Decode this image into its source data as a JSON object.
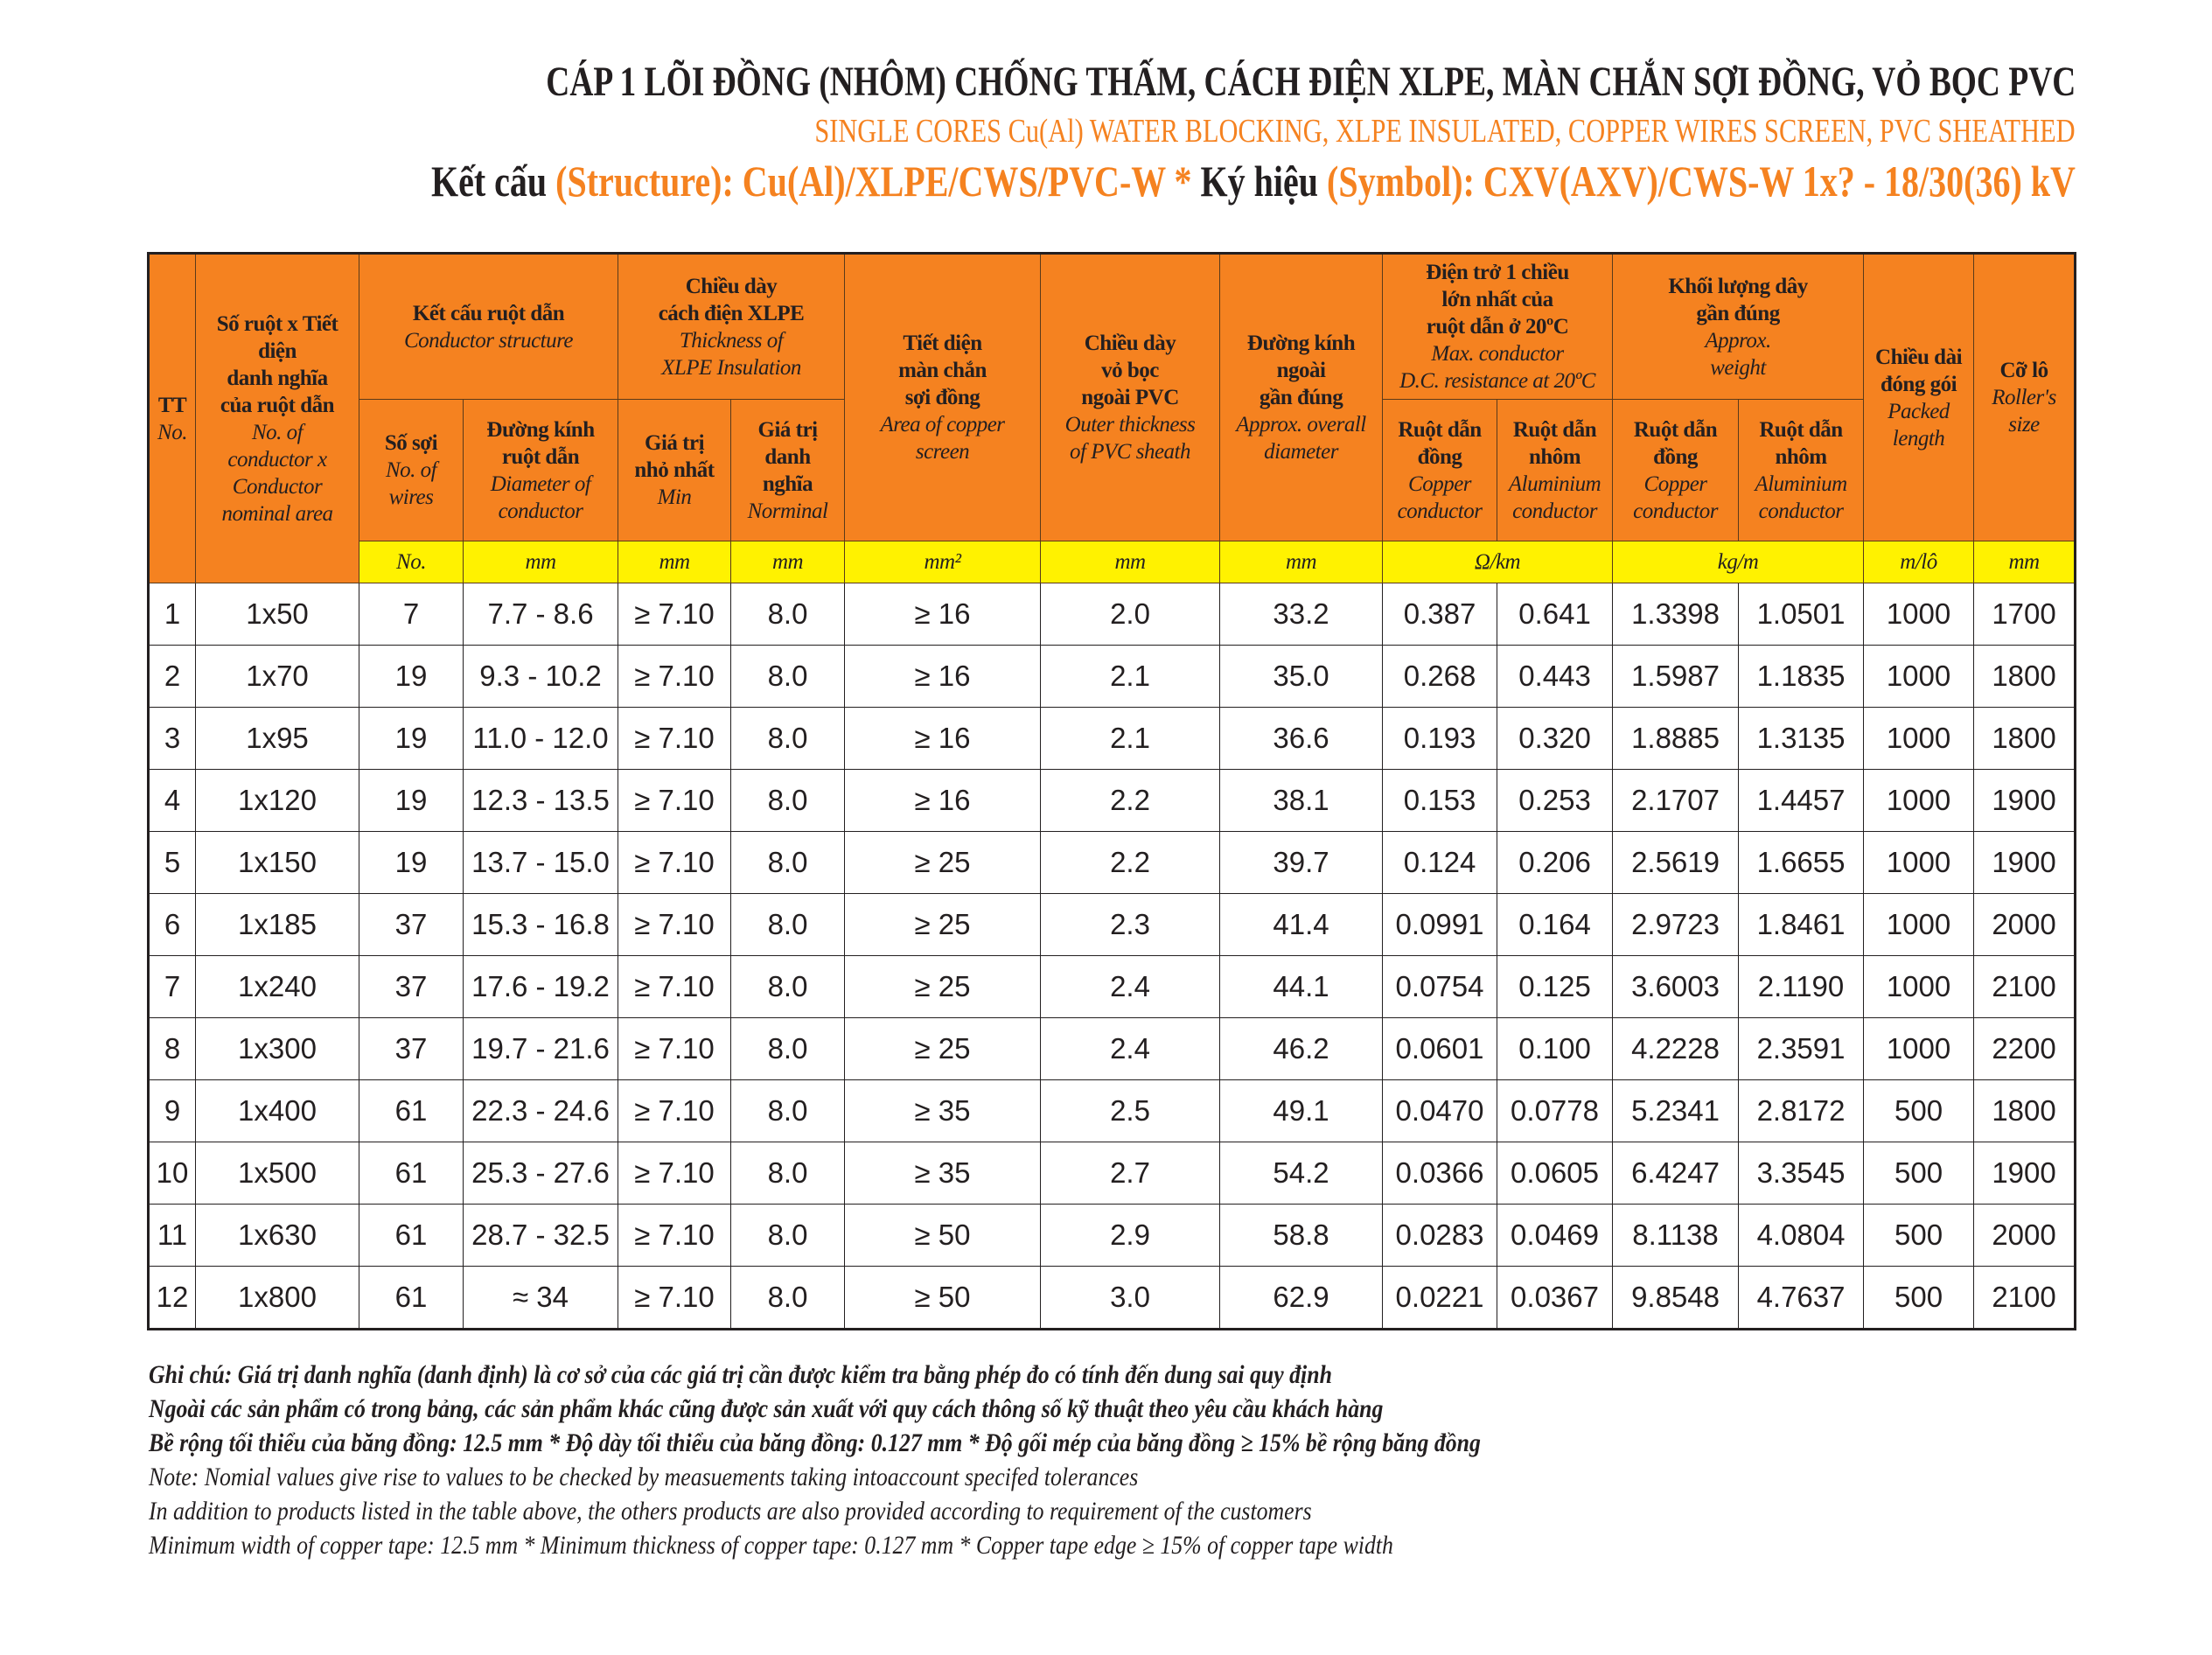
{
  "title": {
    "vi": "CÁP 1 LÕI ĐỒNG (NHÔM) CHỐNG THẤM, CÁCH ĐIỆN XLPE, MÀN CHẮN SỢI ĐỒNG,  VỎ BỌC PVC",
    "en": "SINGLE CORES Cu(Al) WATER BLOCKING, XLPE INSULATED, COPPER WIRES SCREEN,  PVC SHEATHED",
    "structure_label": "Kết cấu ",
    "structure_value": "(Structure): Cu(Al)/XLPE/CWS/PVC-W  * ",
    "symbol_label": "Ký hiệu ",
    "symbol_value": "(Symbol): CXV(AXV)/CWS-W 1x? - 18/30(36) kV"
  },
  "colors": {
    "header": "#f58220",
    "unit_row": "#fff200",
    "accent_text": "#f58220"
  },
  "headers": {
    "tt": {
      "vi": "TT",
      "en": "No."
    },
    "size": {
      "vi": "Số ruột x Tiết\ndiện\ndanh nghĩa\ncủa ruột dẫn",
      "en": "No. of\nconductor x\nConductor\nnominal area"
    },
    "cond": {
      "vi": "Kết cấu ruột dẫn",
      "en": "Conductor structure"
    },
    "wires": {
      "vi": "Số sợi",
      "en": "No. of\nwires"
    },
    "diam": {
      "vi": "Đường kính\nruột dẫn",
      "en": "Diameter of\nconductor"
    },
    "xlpe": {
      "vi": "Chiều dày\ncách điện XLPE",
      "en": "Thickness of\nXLPE Insulation"
    },
    "min": {
      "vi": "Giá trị\nnhỏ nhất",
      "en": "Min"
    },
    "nom": {
      "vi": "Giá trị\ndanh\nnghĩa",
      "en": "Norminal"
    },
    "screen": {
      "vi": "Tiết diện\nmàn chắn\nsợi đồng",
      "en": "Area of copper\nscreen"
    },
    "sheath": {
      "vi": "Chiều dày\nvỏ bọc\nngoài PVC",
      "en": "Outer thickness\nof PVC sheath"
    },
    "od": {
      "vi": "Đường kính\nngoài\ngần đúng",
      "en": "Approx. overall\ndiameter"
    },
    "res": {
      "vi": "Điện trở 1 chiều\nlớn nhất của\nruột dẫn ở 20ºC",
      "en": "Max. conductor\nD.C. resistance at 20ºC"
    },
    "weight": {
      "vi": "Khối lượng dây\ngần đúng",
      "en": "Approx.\nweight"
    },
    "cu": {
      "vi": "Ruột dẫn\nđồng",
      "en": "Copper\nconductor"
    },
    "al": {
      "vi": "Ruột dẫn\nnhôm",
      "en": "Aluminium\nconductor"
    },
    "len": {
      "vi": "Chiều dài\nđóng gói",
      "en": "Packed\nlength"
    },
    "roll": {
      "vi": "Cỡ lô",
      "en": "Roller's\nsize"
    }
  },
  "units": [
    "No.",
    "mm",
    "mm",
    "mm",
    "mm²",
    "mm",
    "mm",
    "Ω/km",
    "kg/m",
    "m/lô",
    "mm"
  ],
  "rows": [
    [
      "1",
      "1x50",
      "7",
      "7.7 - 8.6",
      "≥ 7.10",
      "8.0",
      "≥ 16",
      "2.0",
      "33.2",
      "0.387",
      "0.641",
      "1.3398",
      "1.0501",
      "1000",
      "1700"
    ],
    [
      "2",
      "1x70",
      "19",
      "9.3 - 10.2",
      "≥ 7.10",
      "8.0",
      "≥ 16",
      "2.1",
      "35.0",
      "0.268",
      "0.443",
      "1.5987",
      "1.1835",
      "1000",
      "1800"
    ],
    [
      "3",
      "1x95",
      "19",
      "11.0 - 12.0",
      "≥ 7.10",
      "8.0",
      "≥ 16",
      "2.1",
      "36.6",
      "0.193",
      "0.320",
      "1.8885",
      "1.3135",
      "1000",
      "1800"
    ],
    [
      "4",
      "1x120",
      "19",
      "12.3 - 13.5",
      "≥ 7.10",
      "8.0",
      "≥ 16",
      "2.2",
      "38.1",
      "0.153",
      "0.253",
      "2.1707",
      "1.4457",
      "1000",
      "1900"
    ],
    [
      "5",
      "1x150",
      "19",
      "13.7 - 15.0",
      "≥ 7.10",
      "8.0",
      "≥ 25",
      "2.2",
      "39.7",
      "0.124",
      "0.206",
      "2.5619",
      "1.6655",
      "1000",
      "1900"
    ],
    [
      "6",
      "1x185",
      "37",
      "15.3 - 16.8",
      "≥ 7.10",
      "8.0",
      "≥ 25",
      "2.3",
      "41.4",
      "0.0991",
      "0.164",
      "2.9723",
      "1.8461",
      "1000",
      "2000"
    ],
    [
      "7",
      "1x240",
      "37",
      "17.6 - 19.2",
      "≥ 7.10",
      "8.0",
      "≥ 25",
      "2.4",
      "44.1",
      "0.0754",
      "0.125",
      "3.6003",
      "2.1190",
      "1000",
      "2100"
    ],
    [
      "8",
      "1x300",
      "37",
      "19.7 - 21.6",
      "≥ 7.10",
      "8.0",
      "≥ 25",
      "2.4",
      "46.2",
      "0.0601",
      "0.100",
      "4.2228",
      "2.3591",
      "1000",
      "2200"
    ],
    [
      "9",
      "1x400",
      "61",
      "22.3 - 24.6",
      "≥ 7.10",
      "8.0",
      "≥ 35",
      "2.5",
      "49.1",
      "0.0470",
      "0.0778",
      "5.2341",
      "2.8172",
      "500",
      "1800"
    ],
    [
      "10",
      "1x500",
      "61",
      "25.3 - 27.6",
      "≥ 7.10",
      "8.0",
      "≥ 35",
      "2.7",
      "54.2",
      "0.0366",
      "0.0605",
      "6.4247",
      "3.3545",
      "500",
      "1900"
    ],
    [
      "11",
      "1x630",
      "61",
      "28.7 - 32.5",
      "≥ 7.10",
      "8.0",
      "≥ 50",
      "2.9",
      "58.8",
      "0.0283",
      "0.0469",
      "8.1138",
      "4.0804",
      "500",
      "2000"
    ],
    [
      "12",
      "1x800",
      "61",
      "≈ 34",
      "≥ 7.10",
      "8.0",
      "≥ 50",
      "3.0",
      "62.9",
      "0.0221",
      "0.0367",
      "9.8548",
      "4.7637",
      "500",
      "2100"
    ]
  ],
  "notes": {
    "vi": [
      "Ghi chú: Giá trị danh nghĩa (danh định) là cơ sở của các giá trị cần được kiểm tra bằng phép đo có tính đến dung sai quy định",
      "Ngoài các sản phẩm có trong bảng, các sản phẩm khác cũng được sản xuất với quy cách thông số kỹ thuật theo yêu cầu khách hàng",
      "Bề rộng tối thiểu của băng đồng: 12.5 mm * Độ dày tối thiểu của băng đồng: 0.127 mm * Độ gối mép của băng đồng ≥ 15% bề rộng băng đồng"
    ],
    "en": [
      "Note: Nomial values give rise to values to be checked by measuements taking intoaccount specifed tolerances",
      "In addition to products listed in the table above, the others products are also provided according to requirement of the customers",
      "Minimum width of copper tape: 12.5 mm * Minimum thickness of copper tape: 0.127 mm * Copper tape edge ≥ 15% of copper tape width"
    ]
  }
}
